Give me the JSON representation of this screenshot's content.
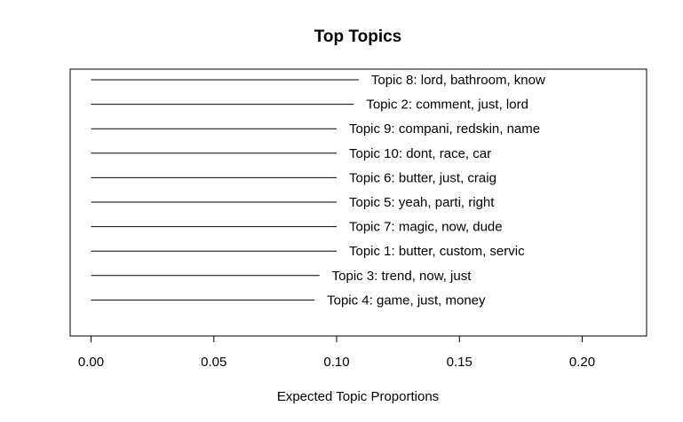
{
  "chart_data": {
    "type": "bar",
    "orientation": "horizontal",
    "title": "Top Topics",
    "xlabel": "Expected Topic Proportions",
    "ylabel": "",
    "xlim": [
      0.0,
      0.225
    ],
    "x_ticks": [
      "0.00",
      "0.05",
      "0.10",
      "0.15",
      "0.20"
    ],
    "x_tick_values": [
      0.0,
      0.05,
      0.1,
      0.15,
      0.2
    ],
    "grid": false,
    "categories": [
      "Topic 8: lord, bathroom, know",
      "Topic 2: comment, just, lord",
      "Topic 9: compani, redskin, name",
      "Topic 10: dont, race, car",
      "Topic 6: butter, just, craig",
      "Topic 5: yeah, parti, right",
      "Topic 7: magic, now, dude",
      "Topic 1: butter, custom, servic",
      "Topic 3: trend, now, just",
      "Topic 4: game, just, money"
    ],
    "values": [
      0.109,
      0.107,
      0.1,
      0.1,
      0.1,
      0.1,
      0.1,
      0.1,
      0.093,
      0.091
    ],
    "colors": {
      "line": "#000000",
      "frame": "#000000",
      "background": "#ffffff"
    }
  }
}
